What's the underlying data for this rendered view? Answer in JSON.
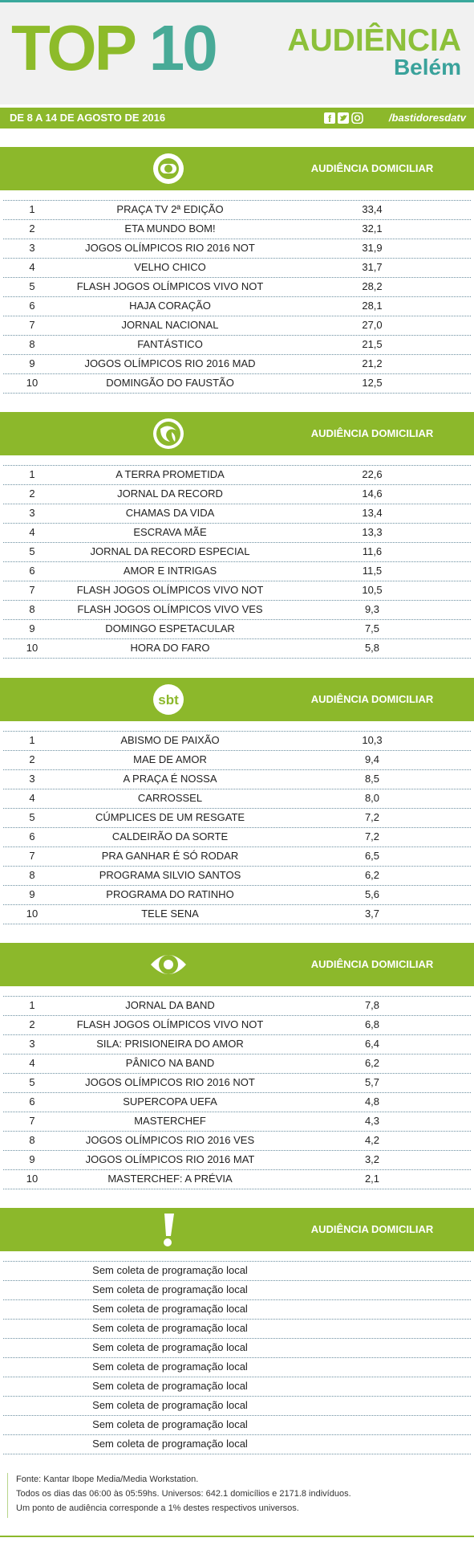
{
  "header": {
    "title_top": "TOP",
    "title_num": "10",
    "audiencia": "AUDIÊNCIA",
    "city": "Belém"
  },
  "date_bar": {
    "date": "DE 8 A 14 DE AGOSTO DE 2016",
    "handle": "/bastidoresdatv"
  },
  "sections": [
    {
      "column_title": "AUDIÊNCIA DOMICILIAR",
      "rows": [
        [
          "1",
          "PRAÇA TV 2ª EDIÇÃO",
          "33,4"
        ],
        [
          "2",
          "ETA MUNDO BOM!",
          "32,1"
        ],
        [
          "3",
          "JOGOS OLÍMPICOS RIO 2016 NOT",
          "31,9"
        ],
        [
          "4",
          "VELHO CHICO",
          "31,7"
        ],
        [
          "5",
          "FLASH JOGOS OLÍMPICOS VIVO NOT",
          "28,2"
        ],
        [
          "6",
          "HAJA CORAÇÃO",
          "28,1"
        ],
        [
          "7",
          "JORNAL NACIONAL",
          "27,0"
        ],
        [
          "8",
          "FANTÁSTICO",
          "21,5"
        ],
        [
          "9",
          "JOGOS OLÍMPICOS RIO 2016 MAD",
          "21,2"
        ],
        [
          "10",
          "DOMINGÃO DO FAUSTÃO",
          "12,5"
        ]
      ]
    },
    {
      "column_title": "AUDIÊNCIA DOMICILIAR",
      "rows": [
        [
          "1",
          "A TERRA PROMETIDA",
          "22,6"
        ],
        [
          "2",
          "JORNAL DA RECORD",
          "14,6"
        ],
        [
          "3",
          "CHAMAS DA VIDA",
          "13,4"
        ],
        [
          "4",
          "ESCRAVA MÃE",
          "13,3"
        ],
        [
          "5",
          "JORNAL DA RECORD ESPECIAL",
          "11,6"
        ],
        [
          "6",
          "AMOR E INTRIGAS",
          "11,5"
        ],
        [
          "7",
          "FLASH JOGOS OLÍMPICOS VIVO NOT",
          "10,5"
        ],
        [
          "8",
          "FLASH JOGOS OLÍMPICOS VIVO VES",
          "9,3"
        ],
        [
          "9",
          "DOMINGO ESPETACULAR",
          "7,5"
        ],
        [
          "10",
          "HORA DO FARO",
          "5,8"
        ]
      ]
    },
    {
      "logo_text": "sbt",
      "column_title": "AUDIÊNCIA DOMICILIAR",
      "rows": [
        [
          "1",
          "ABISMO DE PAIXÃO",
          "10,3"
        ],
        [
          "2",
          "MAE DE AMOR",
          "9,4"
        ],
        [
          "3",
          "A PRAÇA É NOSSA",
          "8,5"
        ],
        [
          "4",
          "CARROSSEL",
          "8,0"
        ],
        [
          "5",
          "CÚMPLICES DE UM RESGATE",
          "7,2"
        ],
        [
          "6",
          "CALDEIRÃO DA SORTE",
          "7,2"
        ],
        [
          "7",
          "PRA GANHAR É SÓ RODAR",
          "6,5"
        ],
        [
          "8",
          "PROGRAMA SILVIO SANTOS",
          "6,2"
        ],
        [
          "9",
          "PROGRAMA DO RATINHO",
          "5,6"
        ],
        [
          "10",
          "TELE SENA",
          "3,7"
        ]
      ]
    },
    {
      "column_title": "AUDIÊNCIA DOMICILIAR",
      "rows": [
        [
          "1",
          "JORNAL DA BAND",
          "7,8"
        ],
        [
          "2",
          "FLASH JOGOS OLÍMPICOS VIVO NOT",
          "6,8"
        ],
        [
          "3",
          "SILA: PRISIONEIRA DO AMOR",
          "6,4"
        ],
        [
          "4",
          "PÂNICO NA BAND",
          "6,2"
        ],
        [
          "5",
          "JOGOS OLÍMPICOS RIO 2016 NOT",
          "5,7"
        ],
        [
          "6",
          "SUPERCOPA UEFA",
          "4,8"
        ],
        [
          "7",
          "MASTERCHEF",
          "4,3"
        ],
        [
          "8",
          "JOGOS OLÍMPICOS RIO 2016 VES",
          "4,2"
        ],
        [
          "9",
          "JOGOS OLÍMPICOS RIO 2016 MAT",
          "3,2"
        ],
        [
          "10",
          "MASTERCHEF: A PRÉVIA",
          "2,1"
        ]
      ]
    },
    {
      "column_title": "AUDIÊNCIA DOMICILIAR",
      "rows": [
        [
          "Sem coleta de programação local"
        ],
        [
          "Sem coleta de programação local"
        ],
        [
          "Sem coleta de programação local"
        ],
        [
          "Sem coleta de programação local"
        ],
        [
          "Sem coleta de programação local"
        ],
        [
          "Sem coleta de programação local"
        ],
        [
          "Sem coleta de programação local"
        ],
        [
          "Sem coleta de programação local"
        ],
        [
          "Sem coleta de programação local"
        ],
        [
          "Sem coleta de programação local"
        ]
      ]
    }
  ],
  "footer": [
    "Fonte: Kantar Ibope Media/Media Workstation.",
    "Todos os dias das 06:00 às 05:59hs. Universos: 642.1 domicílios e 2171.8 indivíduos.",
    "Um ponto de audiência corresponde a 1% destes respectivos universos."
  ]
}
